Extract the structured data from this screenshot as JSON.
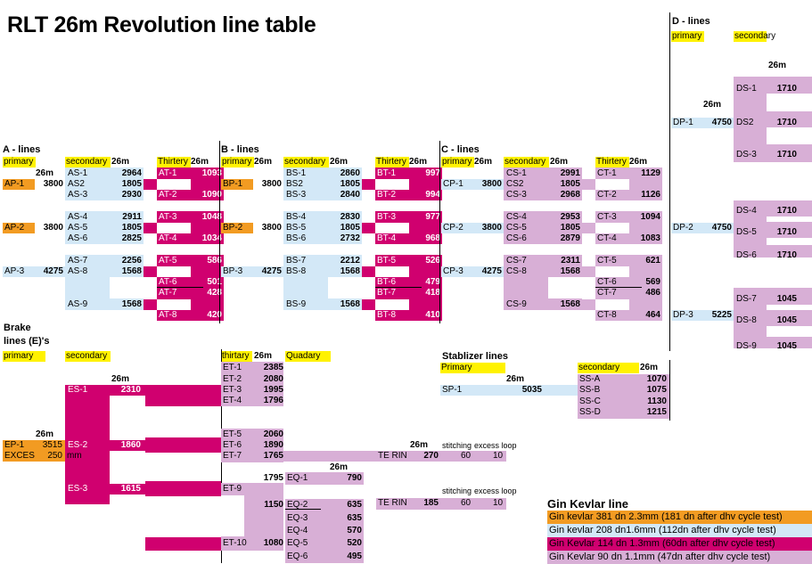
{
  "title": "RLT 26m Revolution line table",
  "colors": {
    "primary_fill": "#f29b22",
    "secondary_fill": "#d3e8f7",
    "tertiary_fill": "#d0006f",
    "stabilizer_fill": "#d8afd6",
    "header_highlight": "#fff200"
  },
  "a_lines": {
    "title": "A - lines",
    "primary_label": "primary",
    "secondary_label": "secondary",
    "tertiary_label": "Thirtery",
    "len": "26m",
    "primary": [
      {
        "name": "AP-1",
        "value": "3800"
      },
      {
        "name": "AP-2",
        "value": "3800"
      },
      {
        "name": "AP-3",
        "value": "4275"
      }
    ],
    "secondary": [
      {
        "name": "AS-1",
        "value": "2964"
      },
      {
        "name": "AS2",
        "value": "1805"
      },
      {
        "name": "AS-3",
        "value": "2930"
      },
      {
        "name": "AS-4",
        "value": "2911"
      },
      {
        "name": "AS-5",
        "value": "1805"
      },
      {
        "name": "AS-6",
        "value": "2825"
      },
      {
        "name": "AS-7",
        "value": "2256"
      },
      {
        "name": "AS-8",
        "value": "1568"
      },
      {
        "name": "AS-9",
        "value": "1568"
      }
    ],
    "tertiary": [
      {
        "name": "AT-1",
        "value": "1093"
      },
      {
        "name": "AT-2",
        "value": "1090"
      },
      {
        "name": "AT-3",
        "value": "1048"
      },
      {
        "name": "AT-4",
        "value": "1034"
      },
      {
        "name": "AT-5",
        "value": "586"
      },
      {
        "name": "AT-6",
        "value": "501"
      },
      {
        "name": "AT-7",
        "value": "428"
      },
      {
        "name": "AT-8",
        "value": "420"
      }
    ]
  },
  "b_lines": {
    "title": "B - lines",
    "primary_label": "primary",
    "secondary_label": "secondary",
    "tertiary_label": "Thirtery",
    "len": "26m",
    "primary": [
      {
        "name": "BP-1",
        "value": "3800"
      },
      {
        "name": "BP-2",
        "value": "3800"
      },
      {
        "name": "BP-3",
        "value": "4275"
      }
    ],
    "secondary": [
      {
        "name": "BS-1",
        "value": "2860"
      },
      {
        "name": "BS2",
        "value": "1805"
      },
      {
        "name": "BS-3",
        "value": "2840"
      },
      {
        "name": "BS-4",
        "value": "2830"
      },
      {
        "name": "BS-5",
        "value": "1805"
      },
      {
        "name": "BS-6",
        "value": "2732"
      },
      {
        "name": "BS-7",
        "value": "2212"
      },
      {
        "name": "BS-8",
        "value": "1568"
      },
      {
        "name": "BS-9",
        "value": "1568"
      }
    ],
    "tertiary": [
      {
        "name": "BT-1",
        "value": "997"
      },
      {
        "name": "BT-2",
        "value": "994"
      },
      {
        "name": "BT-3",
        "value": "977"
      },
      {
        "name": "BT-4",
        "value": "968"
      },
      {
        "name": "BT-5",
        "value": "526"
      },
      {
        "name": "BT-6",
        "value": "479"
      },
      {
        "name": "BT-7",
        "value": "418"
      },
      {
        "name": "BT-8",
        "value": "410"
      }
    ]
  },
  "c_lines": {
    "title": "C - lines",
    "primary_label": "primary",
    "secondary_label": "secondary",
    "tertiary_label": "Thirtery",
    "len": "26m",
    "primary": [
      {
        "name": "CP-1",
        "value": "3800"
      },
      {
        "name": "CP-2",
        "value": "3800"
      },
      {
        "name": "CP-3",
        "value": "4275"
      }
    ],
    "secondary": [
      {
        "name": "CS-1",
        "value": "2991"
      },
      {
        "name": "CS2",
        "value": "1805"
      },
      {
        "name": "CS-3",
        "value": "2968"
      },
      {
        "name": "CS-4",
        "value": "2953"
      },
      {
        "name": "CS-5",
        "value": "1805"
      },
      {
        "name": "CS-6",
        "value": "2879"
      },
      {
        "name": "CS-7",
        "value": "2311"
      },
      {
        "name": "CS-8",
        "value": "1568"
      },
      {
        "name": "CS-9",
        "value": "1568"
      }
    ],
    "tertiary": [
      {
        "name": "CT-1",
        "value": "1129"
      },
      {
        "name": "CT-2",
        "value": "1126"
      },
      {
        "name": "CT-3",
        "value": "1094"
      },
      {
        "name": "CT-4",
        "value": "1083"
      },
      {
        "name": "CT-5",
        "value": "621"
      },
      {
        "name": "CT-6",
        "value": "569"
      },
      {
        "name": "CT-7",
        "value": "486"
      },
      {
        "name": "CT-8",
        "value": "464"
      }
    ]
  },
  "d_lines": {
    "title": "D - lines",
    "primary_label": "primary",
    "secondary_label": "secondary",
    "len": "26m",
    "primary": [
      {
        "name": "DP-1",
        "value": "4750"
      },
      {
        "name": "DP-2",
        "value": "4750"
      },
      {
        "name": "DP-3",
        "value": "5225"
      }
    ],
    "secondary": [
      {
        "name": "DS-1",
        "value": "1710"
      },
      {
        "name": "DS2",
        "value": "1710"
      },
      {
        "name": "DS-3",
        "value": "1710"
      },
      {
        "name": "DS-4",
        "value": "1710"
      },
      {
        "name": "DS-5",
        "value": "1710"
      },
      {
        "name": "DS-6",
        "value": "1710"
      },
      {
        "name": "DS-7",
        "value": "1045"
      },
      {
        "name": "DS-8",
        "value": "1045"
      },
      {
        "name": "DS-9",
        "value": "1045"
      }
    ]
  },
  "brake": {
    "title_line1": "Brake",
    "title_line2": "lines (E)'s",
    "primary_label": "primary",
    "secondary_label": "secondary",
    "tertiary_label": "thirtary",
    "quadary_label": "Quadary",
    "len": "26m",
    "primary": [
      {
        "name": "EP-1",
        "value": "3515"
      },
      {
        "name": "EXCES",
        "value": "250"
      }
    ],
    "excess_unit": "mm",
    "secondary": [
      {
        "name": "ES-1",
        "value": "2310"
      },
      {
        "name": "ES-2",
        "value": "1860"
      },
      {
        "name": "ES-3",
        "value": "1615"
      }
    ],
    "tertiary": [
      {
        "name": "ET-1",
        "value": "2385"
      },
      {
        "name": "ET-2",
        "value": "2080"
      },
      {
        "name": "ET-3",
        "value": "1995"
      },
      {
        "name": "ET-4",
        "value": "1796"
      },
      {
        "name": "ET-5",
        "value": "2060"
      },
      {
        "name": "ET-6",
        "value": "1890"
      },
      {
        "name": "ET-7",
        "value": "1765"
      },
      {
        "name": "ET-9",
        "value": ""
      },
      {
        "name": "ET-10",
        "value": "1080"
      }
    ],
    "et9_values": [
      "1795",
      "1150"
    ],
    "quadary": [
      {
        "name": "EQ-1",
        "value": "790"
      },
      {
        "name": "EQ-2",
        "value": "635"
      },
      {
        "name": "EQ-3",
        "value": "635"
      },
      {
        "name": "EQ-4",
        "value": "570"
      },
      {
        "name": "EQ-5",
        "value": "520"
      },
      {
        "name": "EQ-6",
        "value": "495"
      }
    ],
    "te_rin": [
      {
        "name": "TE RIN",
        "value": "270",
        "stitching": "60",
        "excess_loop": "10"
      },
      {
        "name": "TE RIN",
        "value": "185",
        "stitching": "60",
        "excess_loop": "10"
      }
    ],
    "stitching_label": "stitching",
    "excess_loop_label": "excess loop"
  },
  "stabilizer": {
    "title": "Stablizer lines",
    "primary_label": "Primary",
    "secondary_label": "secondary",
    "len": "26m",
    "primary": {
      "name": "SP-1",
      "value": "5035"
    },
    "secondary": [
      {
        "name": "SS-A",
        "value": "1070"
      },
      {
        "name": "SS-B",
        "value": "1075"
      },
      {
        "name": "SS-C",
        "value": "1130"
      },
      {
        "name": "SS-D",
        "value": "1215"
      }
    ]
  },
  "legend": {
    "title": "Gin Kevlar line",
    "items": [
      {
        "text": "Gin kevlar 381 dn 2.3mm (181 dn after dhv cycle test)",
        "color": "#f29b22"
      },
      {
        "text": "Gin kevlar 208 dn1.6mm (112dn after dhv cycle test)",
        "color": "#d3e8f7"
      },
      {
        "text": "Gin Kevlar 114 dn 1.3mm (60dn after dhv cycle test)",
        "color": "#d0006f"
      },
      {
        "text": "Gin Kevlar 90 dn 1.1mm (47dn after dhv cycle test)",
        "color": "#d8afd6"
      }
    ]
  }
}
